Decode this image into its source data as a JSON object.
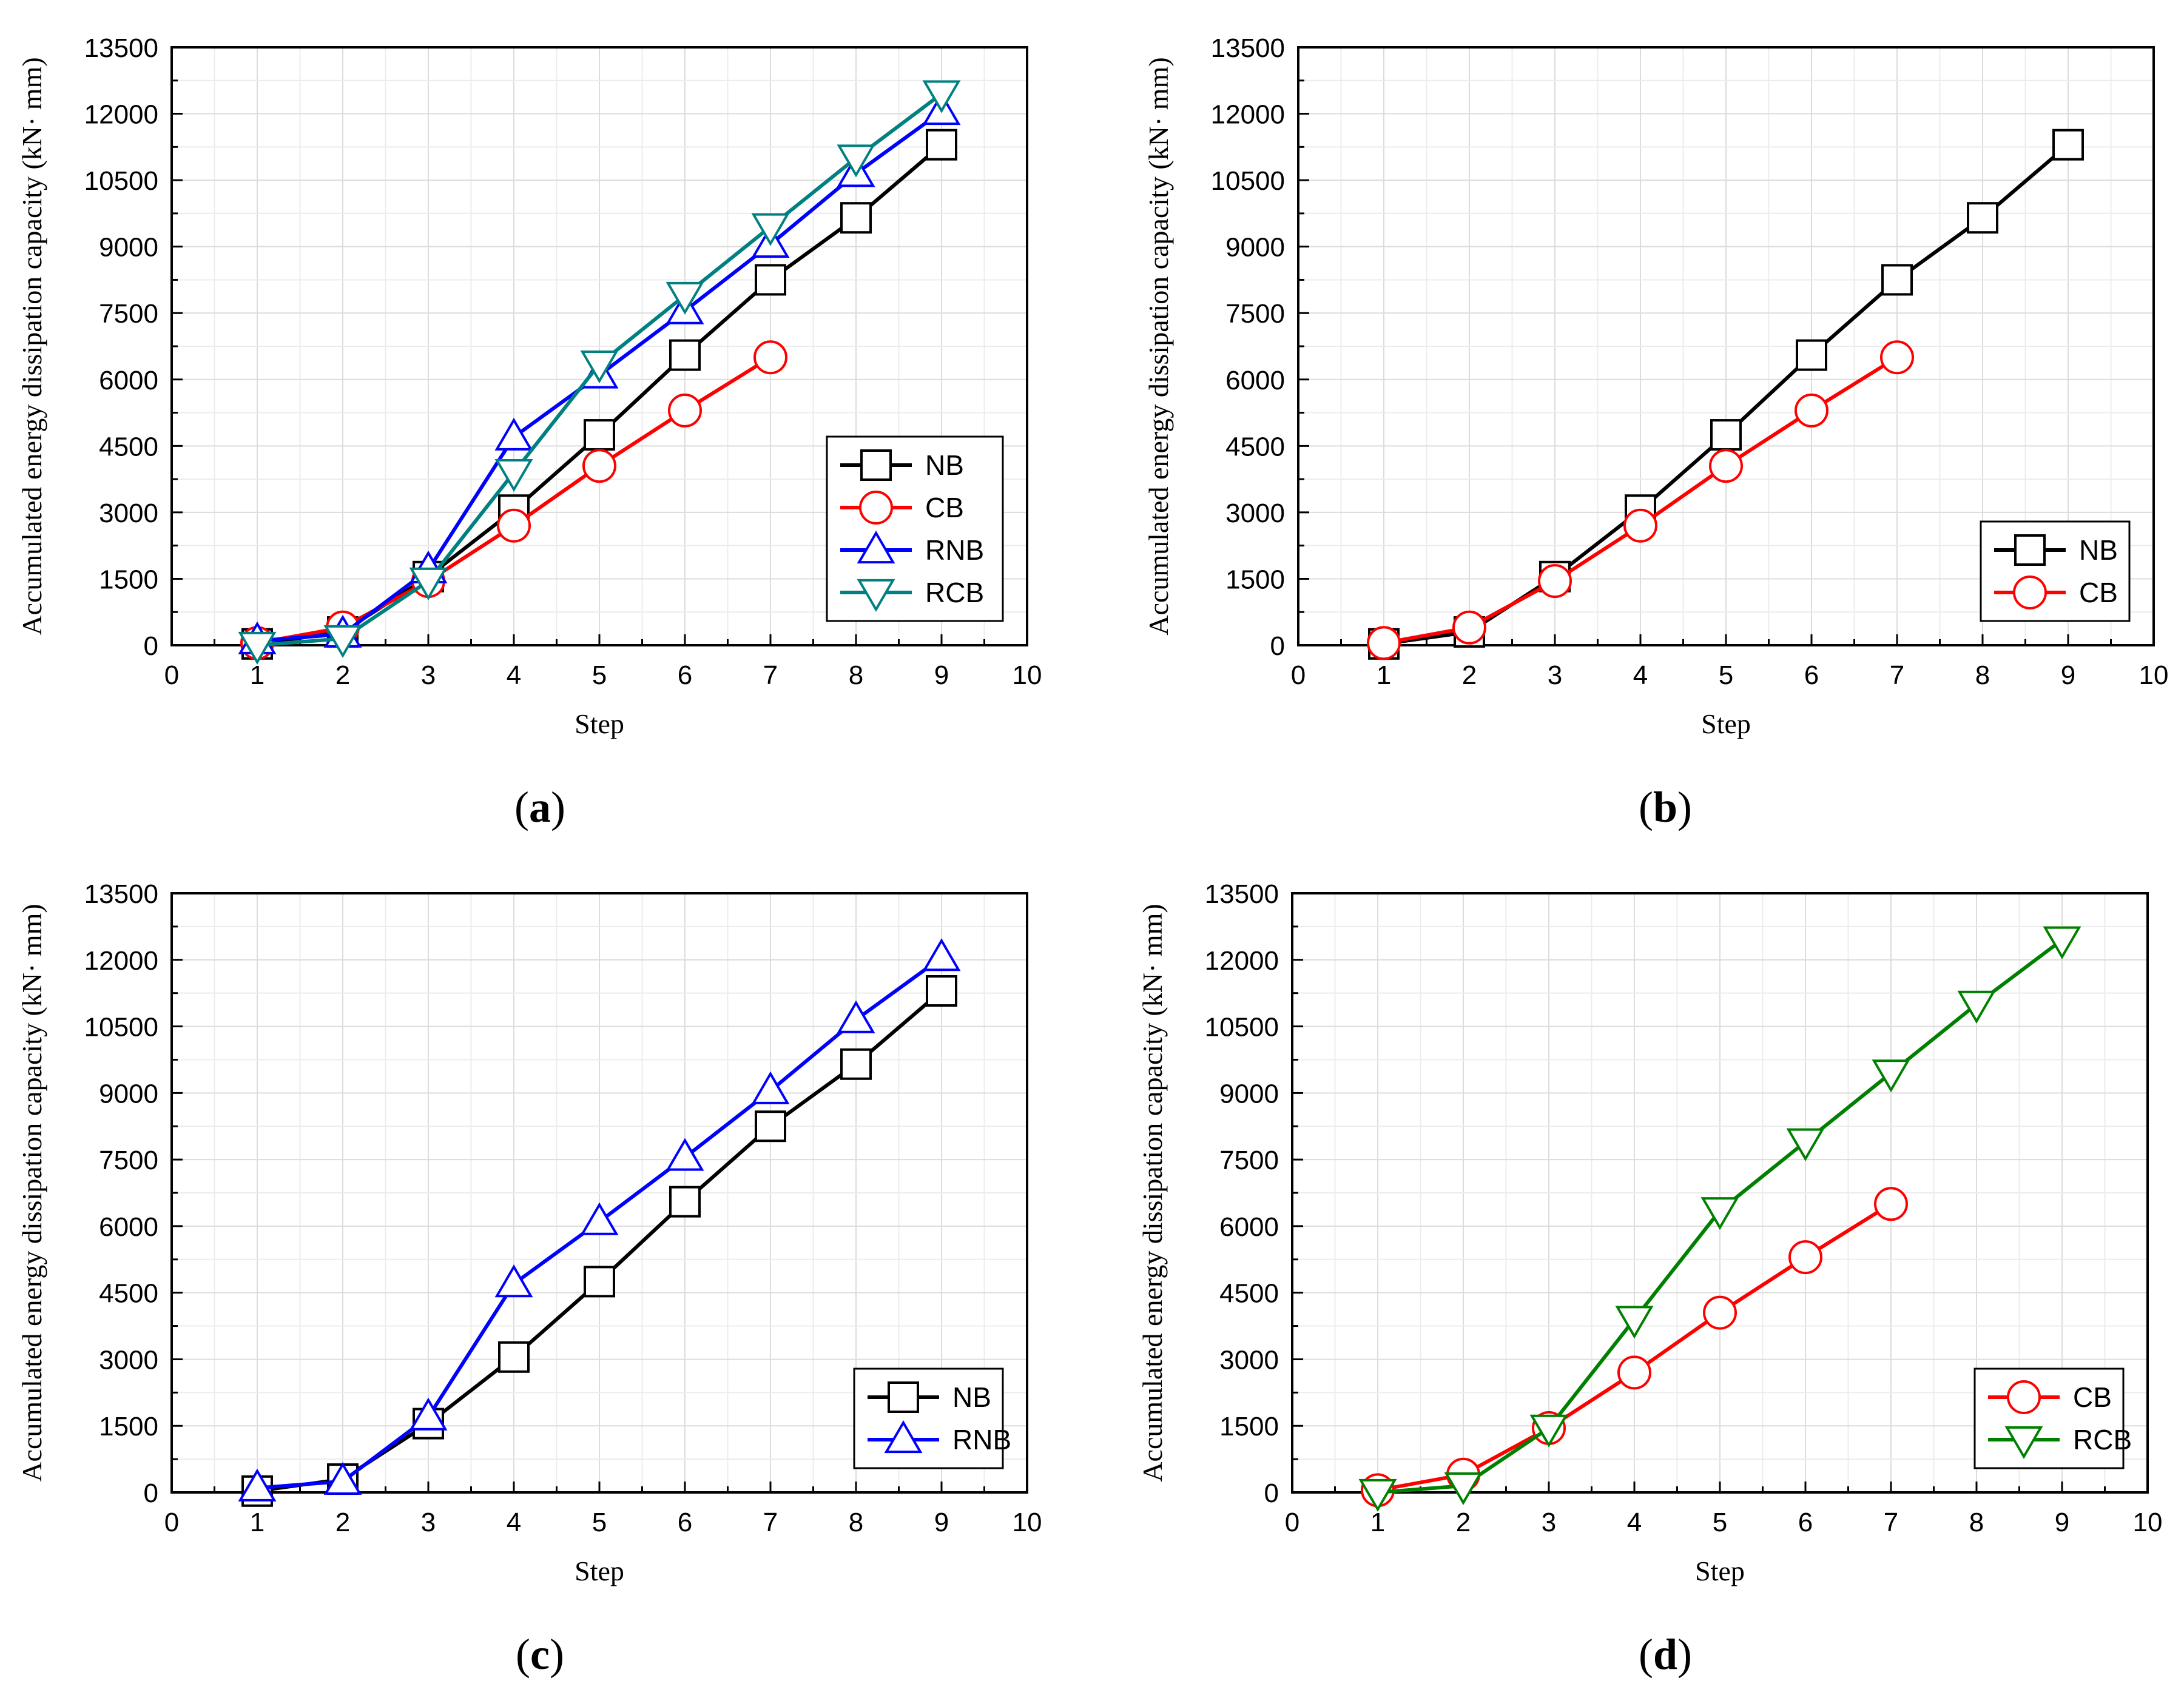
{
  "chart_data": [
    {
      "type": "line",
      "panel": "a",
      "panel_label": "(a)",
      "xlabel": "Step",
      "ylabel": "Accumulated energy dissipation capacity (kN· mm)",
      "xlim": [
        0,
        10
      ],
      "ylim": [
        0,
        13500
      ],
      "xticks": [
        0,
        1,
        2,
        3,
        4,
        5,
        6,
        7,
        8,
        9,
        10
      ],
      "yticks": [
        0,
        1500,
        3000,
        4500,
        6000,
        7500,
        9000,
        10500,
        12000,
        13500
      ],
      "grid": true,
      "legend_position": "lower-right",
      "series": [
        {
          "name": "NB",
          "color": "#000000",
          "marker": "square",
          "x": [
            1,
            2,
            3,
            4,
            5,
            6,
            7,
            8,
            9
          ],
          "values": [
            30,
            300,
            1550,
            3050,
            4750,
            6550,
            8250,
            9650,
            11300
          ]
        },
        {
          "name": "CB",
          "color": "#ff0000",
          "marker": "circle",
          "x": [
            1,
            2,
            3,
            4,
            5,
            6,
            7
          ],
          "values": [
            50,
            400,
            1450,
            2700,
            4050,
            5300,
            6500
          ]
        },
        {
          "name": "RNB",
          "color": "#0000ff",
          "marker": "triangle-up",
          "x": [
            1,
            2,
            3,
            4,
            5,
            6,
            7,
            8,
            9
          ],
          "values": [
            100,
            250,
            1700,
            4700,
            6100,
            7550,
            9050,
            10650,
            12050
          ]
        },
        {
          "name": "RCB",
          "color": "#008080",
          "marker": "triangle-down",
          "x": [
            1,
            2,
            3,
            4,
            5,
            6,
            7,
            8,
            9
          ],
          "values": [
            0,
            150,
            1450,
            3900,
            6350,
            7900,
            9450,
            11000,
            12450
          ]
        }
      ]
    },
    {
      "type": "line",
      "panel": "b",
      "panel_label": "(b)",
      "xlabel": "Step",
      "ylabel": "Accumulated energy dissipation capacity (kN· mm)",
      "xlim": [
        0,
        10
      ],
      "ylim": [
        0,
        13500
      ],
      "xticks": [
        0,
        1,
        2,
        3,
        4,
        5,
        6,
        7,
        8,
        9,
        10
      ],
      "yticks": [
        0,
        1500,
        3000,
        4500,
        6000,
        7500,
        9000,
        10500,
        12000,
        13500
      ],
      "grid": true,
      "legend_position": "lower-right",
      "series": [
        {
          "name": "NB",
          "color": "#000000",
          "marker": "square",
          "x": [
            1,
            2,
            3,
            4,
            5,
            6,
            7,
            8,
            9
          ],
          "values": [
            30,
            300,
            1550,
            3050,
            4750,
            6550,
            8250,
            9650,
            11300
          ]
        },
        {
          "name": "CB",
          "color": "#ff0000",
          "marker": "circle",
          "x": [
            1,
            2,
            3,
            4,
            5,
            6,
            7
          ],
          "values": [
            50,
            400,
            1450,
            2700,
            4050,
            5300,
            6500
          ]
        }
      ]
    },
    {
      "type": "line",
      "panel": "c",
      "panel_label": "(c)",
      "xlabel": "Step",
      "ylabel": "Accumulated energy dissipation capacity (kN· mm)",
      "xlim": [
        0,
        10
      ],
      "ylim": [
        0,
        13500
      ],
      "xticks": [
        0,
        1,
        2,
        3,
        4,
        5,
        6,
        7,
        8,
        9,
        10
      ],
      "yticks": [
        0,
        1500,
        3000,
        4500,
        6000,
        7500,
        9000,
        10500,
        12000,
        13500
      ],
      "grid": true,
      "legend_position": "lower-right",
      "series": [
        {
          "name": "NB",
          "color": "#000000",
          "marker": "square",
          "x": [
            1,
            2,
            3,
            4,
            5,
            6,
            7,
            8,
            9
          ],
          "values": [
            30,
            300,
            1550,
            3050,
            4750,
            6550,
            8250,
            9650,
            11300
          ]
        },
        {
          "name": "RNB",
          "color": "#0000ff",
          "marker": "triangle-up",
          "x": [
            1,
            2,
            3,
            4,
            5,
            6,
            7,
            8,
            9
          ],
          "values": [
            100,
            250,
            1700,
            4700,
            6100,
            7550,
            9050,
            10650,
            12050
          ]
        }
      ]
    },
    {
      "type": "line",
      "panel": "d",
      "panel_label": "(d)",
      "xlabel": "Step",
      "ylabel": "Accumulated energy dissipation capacity (kN· mm)",
      "xlim": [
        0,
        10
      ],
      "ylim": [
        0,
        13500
      ],
      "xticks": [
        0,
        1,
        2,
        3,
        4,
        5,
        6,
        7,
        8,
        9,
        10
      ],
      "yticks": [
        0,
        1500,
        3000,
        4500,
        6000,
        7500,
        9000,
        10500,
        12000,
        13500
      ],
      "grid": true,
      "legend_position": "lower-right",
      "series": [
        {
          "name": "CB",
          "color": "#ff0000",
          "marker": "circle",
          "x": [
            1,
            2,
            3,
            4,
            5,
            6,
            7
          ],
          "values": [
            50,
            400,
            1450,
            2700,
            4050,
            5300,
            6500
          ]
        },
        {
          "name": "RCB",
          "color": "#008000",
          "marker": "triangle-down",
          "x": [
            1,
            2,
            3,
            4,
            5,
            6,
            7,
            8,
            9
          ],
          "values": [
            0,
            150,
            1450,
            3900,
            6350,
            7900,
            9450,
            11000,
            12450
          ]
        }
      ]
    }
  ]
}
